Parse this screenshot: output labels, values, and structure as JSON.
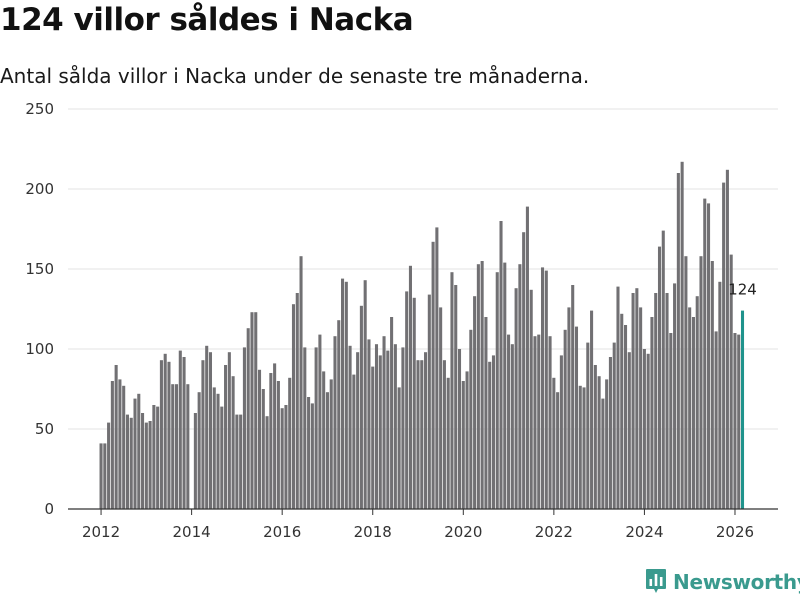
{
  "title": "124 villor såldes i Nacka",
  "subtitle": "Antal sålda villor i Nacka under de senaste tre månaderna.",
  "brand": "Newsworthy",
  "colors": {
    "bar": "#717073",
    "highlight": "#1f938c",
    "grid": "#e3e3e3",
    "axis": "#333333",
    "brand": "#3a9a8e"
  },
  "chart_data": {
    "type": "bar",
    "title": "124 villor såldes i Nacka",
    "subtitle": "Antal sålda villor i Nacka under de senaste tre månaderna.",
    "xlabel": "",
    "ylabel": "",
    "x_start": 2012.0,
    "x_step": 0.08333,
    "xlim": [
      2011.27,
      2026.95
    ],
    "ylim": [
      0,
      250
    ],
    "yticks": [
      0,
      50,
      100,
      150,
      200,
      250
    ],
    "yticklabels": [
      "0",
      "50",
      "100",
      "150",
      "200",
      "250"
    ],
    "xticks": [
      2012,
      2014,
      2016,
      2018,
      2020,
      2022,
      2024,
      2026
    ],
    "xticklabels": [
      "2012",
      "2014",
      "2016",
      "2018",
      "2020",
      "2022",
      "2024",
      "2026"
    ],
    "grid": true,
    "highlight_last": true,
    "last_label": "124",
    "values": [
      41,
      41,
      54,
      80,
      90,
      81,
      77,
      59,
      57,
      69,
      72,
      60,
      54,
      55,
      65,
      64,
      93,
      97,
      92,
      78,
      78,
      99,
      95,
      78,
      0,
      60,
      73,
      93,
      102,
      98,
      76,
      72,
      64,
      90,
      98,
      83,
      59,
      59,
      101,
      113,
      123,
      123,
      87,
      75,
      58,
      85,
      91,
      80,
      63,
      65,
      82,
      128,
      135,
      158,
      101,
      70,
      66,
      101,
      109,
      86,
      73,
      81,
      108,
      118,
      144,
      142,
      102,
      84,
      98,
      127,
      143,
      106,
      89,
      103,
      96,
      108,
      99,
      120,
      103,
      76,
      101,
      136,
      152,
      132,
      93,
      93,
      98,
      134,
      167,
      176,
      126,
      93,
      82,
      148,
      140,
      100,
      80,
      86,
      112,
      133,
      153,
      155,
      120,
      92,
      96,
      148,
      180,
      154,
      109,
      103,
      138,
      153,
      173,
      189,
      137,
      108,
      109,
      151,
      149,
      108,
      82,
      73,
      96,
      112,
      126,
      140,
      114,
      77,
      76,
      104,
      124,
      90,
      83,
      69,
      81,
      95,
      104,
      139,
      122,
      115,
      98,
      135,
      138,
      126,
      100,
      97,
      120,
      135,
      164,
      174,
      135,
      110,
      141,
      210,
      217,
      158,
      126,
      120,
      133,
      158,
      194,
      191,
      155,
      111,
      142,
      204,
      212,
      159,
      110,
      109,
      124
    ]
  }
}
